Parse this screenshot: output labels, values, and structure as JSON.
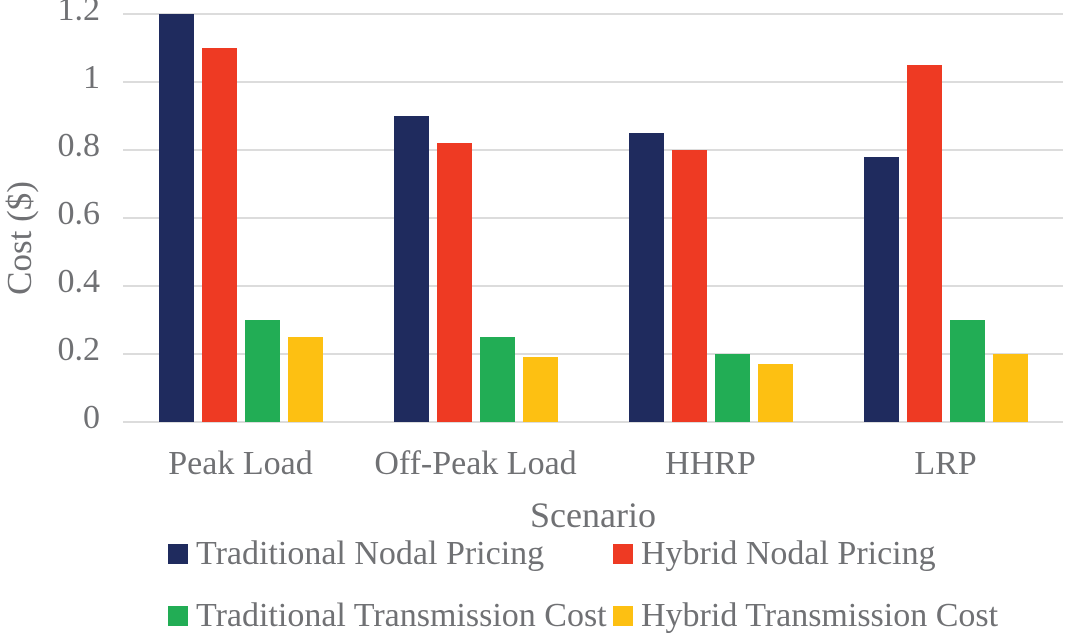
{
  "chart_data": {
    "type": "bar",
    "title": "",
    "xlabel": "Scenario",
    "ylabel": "Cost ($)",
    "categories": [
      "Peak Load",
      "Off-Peak Load",
      "HHRP",
      "LRP"
    ],
    "series": [
      {
        "name": "Traditional Nodal Pricing",
        "color": "#1F2B5E",
        "values": [
          1.2,
          0.9,
          0.85,
          0.78
        ]
      },
      {
        "name": "Hybrid Nodal Pricing",
        "color": "#EE3A23",
        "values": [
          1.1,
          0.82,
          0.8,
          1.05
        ]
      },
      {
        "name": "Traditional Transmission Cost",
        "color": "#22AD55",
        "values": [
          0.3,
          0.25,
          0.2,
          0.3
        ]
      },
      {
        "name": "Hybrid Transmission Cost",
        "color": "#FDC012",
        "values": [
          0.25,
          0.19,
          0.17,
          0.2
        ]
      }
    ],
    "ylim": [
      0,
      1.2
    ],
    "yticks": [
      {
        "label": "0",
        "value": 0.0
      },
      {
        "label": "0.2",
        "value": 0.2
      },
      {
        "label": "0.4",
        "value": 0.4
      },
      {
        "label": "0.6",
        "value": 0.6
      },
      {
        "label": "0.8",
        "value": 0.8
      },
      {
        "label": "1",
        "value": 1.0
      },
      {
        "label": "1.2",
        "value": 1.2
      }
    ],
    "grid": "horizontal-only",
    "legend_position": "bottom",
    "legend_rows": [
      [
        0,
        1
      ],
      [
        2,
        3
      ]
    ],
    "axis_text_color": "#707174",
    "gridline_color": "#DCDCDC",
    "background_color": "#FFFFFF"
  }
}
